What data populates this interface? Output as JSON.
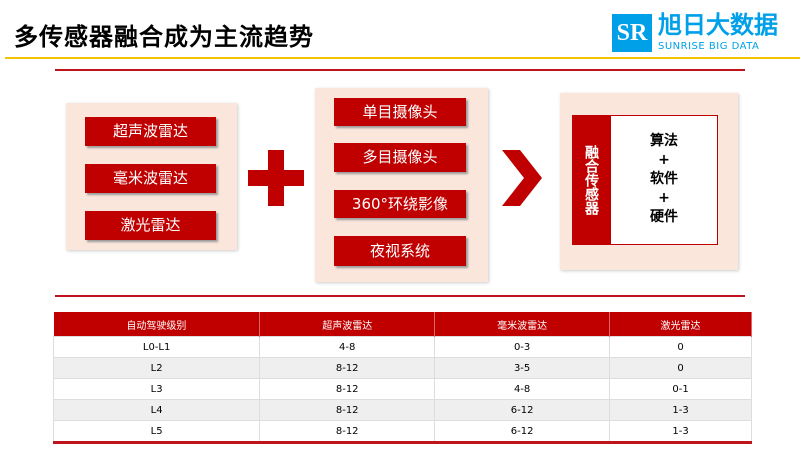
{
  "title": "多传感器融合成为主流趋势",
  "logo": {
    "mark": "SR",
    "cn": "旭日大数据",
    "en": "SUNRISE BIG DATA"
  },
  "colors": {
    "accent": "#c00000",
    "panel": "#fbe6dc",
    "logo": "#00a0e9",
    "rule": "#f5c100"
  },
  "left_group": [
    "超声波雷达",
    "毫米波雷达",
    "激光雷达"
  ],
  "middle_group": [
    "单目摄像头",
    "多目摄像头",
    "360°环绕影像",
    "夜视系统"
  ],
  "right": {
    "label": "融合传感器",
    "lines": [
      "算法",
      "+",
      "软件",
      "+",
      "硬件"
    ]
  },
  "icons": {
    "plus": "plus-icon",
    "arrow": "chevron-right-icon"
  },
  "table": {
    "headers": [
      "自动驾驶级别",
      "超声波雷达",
      "毫米波雷达",
      "激光雷达"
    ],
    "rows": [
      [
        "L0-L1",
        "4-8",
        "0-3",
        "0"
      ],
      [
        "L2",
        "8-12",
        "3-5",
        "0"
      ],
      [
        "L3",
        "8-12",
        "4-8",
        "0-1"
      ],
      [
        "L4",
        "8-12",
        "6-12",
        "1-3"
      ],
      [
        "L5",
        "8-12",
        "6-12",
        "1-3"
      ]
    ]
  }
}
